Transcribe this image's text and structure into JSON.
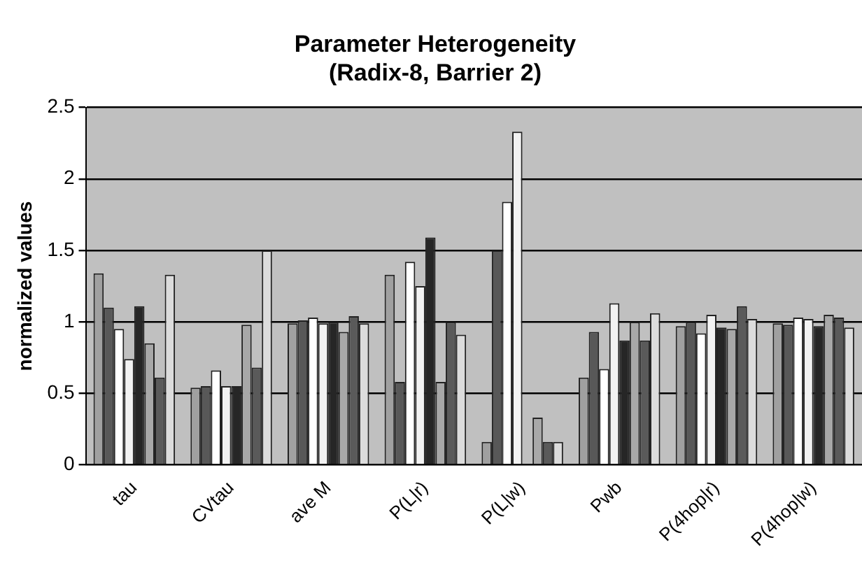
{
  "chart_data": {
    "type": "bar",
    "title": "Parameter Heterogeneity\n(Radix-8, Barrier 2)",
    "ylabel": "normalized values",
    "categories": [
      "tau",
      "CVtau",
      "ave M",
      "P(L|r)",
      "P(L|w)",
      "Pwb",
      "P(4hop|r)",
      "P(4hop|w)"
    ],
    "series": [
      {
        "color": "#a0a0a0",
        "values": [
          1.34,
          0.54,
          0.99,
          1.33,
          0.16,
          0.61,
          0.97,
          0.99
        ]
      },
      {
        "color": "#585858",
        "values": [
          1.1,
          0.55,
          1.01,
          0.58,
          1.5,
          0.93,
          1.0,
          0.98
        ]
      },
      {
        "color": "#ffffff",
        "values": [
          0.95,
          0.66,
          1.03,
          1.42,
          1.84,
          0.67,
          0.92,
          1.03
        ]
      },
      {
        "color": "#f2f2f2",
        "values": [
          0.74,
          0.55,
          0.99,
          1.25,
          2.33,
          1.13,
          1.05,
          1.02
        ]
      },
      {
        "color": "#262626",
        "values": [
          1.11,
          0.55,
          1.0,
          1.59,
          0,
          0.87,
          0.96,
          0.97
        ]
      },
      {
        "color": "#a8a8a8",
        "values": [
          0.85,
          0.98,
          0.93,
          0.58,
          0.33,
          1.0,
          0.95,
          1.05
        ]
      },
      {
        "color": "#5a5a5a",
        "values": [
          0.61,
          0.68,
          1.04,
          1.0,
          0.16,
          0.87,
          1.11,
          1.03
        ]
      },
      {
        "color": "#dcdcdc",
        "values": [
          1.33,
          1.5,
          0.99,
          0.91,
          0.16,
          1.06,
          1.02,
          0.96
        ]
      }
    ],
    "ylim": [
      0,
      2.5
    ],
    "yticks": [
      0,
      0.5,
      1,
      1.5,
      2,
      2.5
    ],
    "grid": "y",
    "legend": false
  }
}
